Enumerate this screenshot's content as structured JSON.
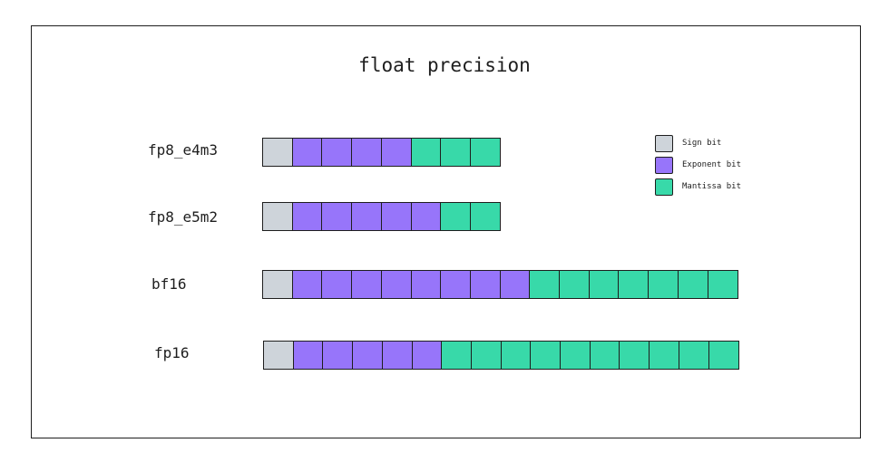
{
  "title": "float precision",
  "colors": {
    "sign": "#ced4da",
    "exponent": "#9775fa",
    "mantissa": "#38d9a9"
  },
  "legend": [
    {
      "key": "sign",
      "label": "Sign bit"
    },
    {
      "key": "exponent",
      "label": "Exponent bit"
    },
    {
      "key": "mantissa",
      "label": "Mantissa bit"
    }
  ],
  "formats": [
    {
      "label": "fp8_e4m3",
      "sign_bits": 1,
      "exponent_bits": 4,
      "mantissa_bits": 3
    },
    {
      "label": "fp8_e5m2",
      "sign_bits": 1,
      "exponent_bits": 5,
      "mantissa_bits": 2
    },
    {
      "label": "bf16",
      "sign_bits": 1,
      "exponent_bits": 8,
      "mantissa_bits": 7
    },
    {
      "label": "fp16",
      "sign_bits": 1,
      "exponent_bits": 5,
      "mantissa_bits": 10
    }
  ]
}
